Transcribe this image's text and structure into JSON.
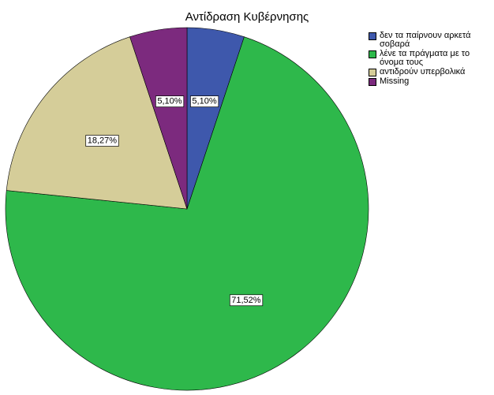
{
  "chart_data": {
    "type": "pie",
    "title": "Αντίδραση Κυβέρνησης",
    "categories": [
      "δεν τα παίρνουν αρκετά σοβαρά",
      "λένε τα πράγματα με το όνομα τους",
      "αντιδρούν υπερβολικά",
      "Missing"
    ],
    "values": [
      5.1,
      71.52,
      18.27,
      5.1
    ],
    "value_labels": [
      "5,10%",
      "71,52%",
      "18,27%",
      "5,10%"
    ],
    "colors": [
      "#3e58ac",
      "#2eb84b",
      "#d5cd99",
      "#7c2a7e"
    ],
    "legend": "right"
  }
}
